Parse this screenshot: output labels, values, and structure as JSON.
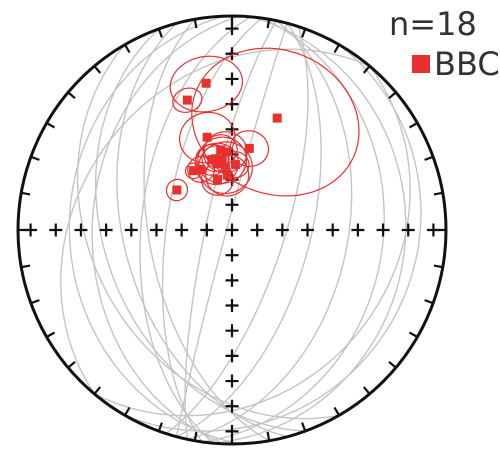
{
  "legend": {
    "count_text": "n=18",
    "series_label": "BBC",
    "series_color": "#e8302f"
  },
  "colors": {
    "outline": "#111111",
    "great_circle": "#c4c4c4",
    "pole": "#e8302f",
    "cone": "#e8302f"
  },
  "chart_data": {
    "type": "scatter",
    "projection": "stereonet",
    "n": 18,
    "series": [
      {
        "name": "BBC",
        "poles": [
          {
            "trend": 350,
            "plunge": 31,
            "alpha95": 12
          },
          {
            "trend": 341,
            "plunge": 36,
            "alpha95": 5
          },
          {
            "trend": 22,
            "plunge": 43,
            "alpha95": 30
          },
          {
            "trend": 345,
            "plunge": 53,
            "alpha95": 10
          },
          {
            "trend": 12,
            "plunge": 58,
            "alpha95": 7
          },
          {
            "trend": 352,
            "plunge": 59,
            "alpha95": 6
          },
          {
            "trend": 355,
            "plunge": 60,
            "alpha95": 8
          },
          {
            "trend": 344,
            "plunge": 62,
            "alpha95": 6
          },
          {
            "trend": 347,
            "plunge": 62,
            "alpha95": 5
          },
          {
            "trend": 352,
            "plunge": 63,
            "alpha95": 9
          },
          {
            "trend": 354,
            "plunge": 66,
            "alpha95": 10
          },
          {
            "trend": 347,
            "plunge": 64,
            "alpha95": 8
          },
          {
            "trend": 3,
            "plunge": 65,
            "alpha95": 5
          },
          {
            "trend": 344,
            "plunge": 70,
            "alpha95": 6
          },
          {
            "trend": 355,
            "plunge": 69,
            "alpha95": 8
          },
          {
            "trend": 327,
            "plunge": 63,
            "alpha95": 3
          },
          {
            "trend": 333,
            "plunge": 64,
            "alpha95": 5
          },
          {
            "trend": 306,
            "plunge": 64,
            "alpha95": 4
          }
        ]
      }
    ],
    "great_circles": [
      {
        "strike": 5,
        "dip": 20
      },
      {
        "strike": 8,
        "dip": 30
      },
      {
        "strike": 12,
        "dip": 45
      },
      {
        "strike": 15,
        "dip": 60
      },
      {
        "strike": 18,
        "dip": 70
      },
      {
        "strike": 178,
        "dip": 25
      },
      {
        "strike": 182,
        "dip": 35
      },
      {
        "strike": 185,
        "dip": 55
      },
      {
        "strike": 188,
        "dip": 65
      },
      {
        "strike": 192,
        "dip": 80
      },
      {
        "strike": 195,
        "dip": 88
      },
      {
        "strike": 160,
        "dip": 40
      },
      {
        "strike": 165,
        "dip": 48
      },
      {
        "strike": 170,
        "dip": 58
      },
      {
        "strike": 150,
        "dip": 35
      },
      {
        "strike": 30,
        "dip": 15
      },
      {
        "strike": 40,
        "dip": 25
      },
      {
        "strike": 220,
        "dip": 30
      }
    ],
    "grid": true,
    "legend_position": "top-right"
  }
}
